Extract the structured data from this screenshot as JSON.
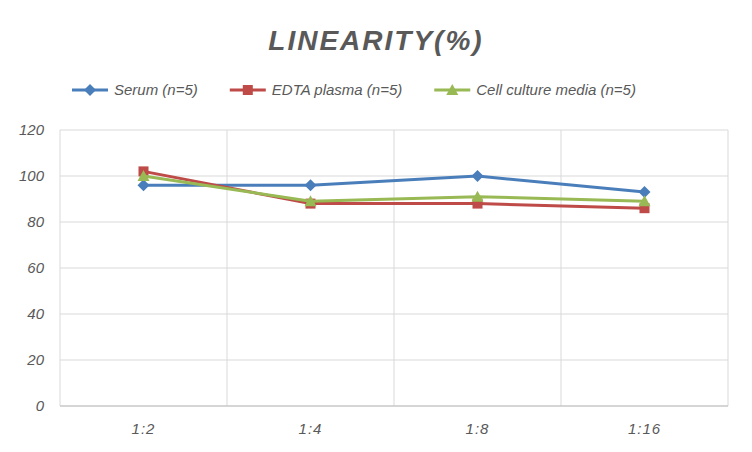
{
  "chart_data": {
    "type": "line",
    "title": "LINEARITY(%)",
    "categories": [
      "1:2",
      "1:4",
      "1:8",
      "1:16"
    ],
    "series": [
      {
        "name": "Serum (n=5)",
        "color": "#4a7ebb",
        "marker": "diamond",
        "values": [
          96,
          96,
          100,
          93
        ]
      },
      {
        "name": "EDTA plasma (n=5)",
        "color": "#be4b48",
        "marker": "square",
        "values": [
          102,
          88,
          88,
          86
        ]
      },
      {
        "name": "Cell culture media (n=5)",
        "color": "#98b954",
        "marker": "triangle",
        "values": [
          100,
          89,
          91,
          89
        ]
      }
    ],
    "ylim": [
      0,
      120
    ],
    "yticks": [
      0,
      20,
      40,
      60,
      80,
      100,
      120
    ],
    "grid": true,
    "legend": "top"
  }
}
